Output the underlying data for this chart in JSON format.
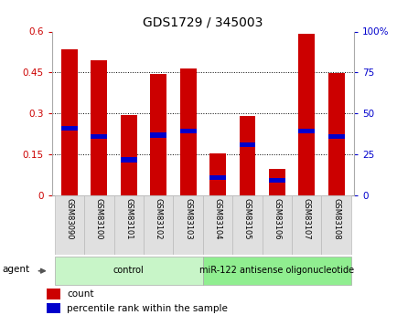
{
  "title": "GDS1729 / 345003",
  "samples": [
    "GSM83090",
    "GSM83100",
    "GSM83101",
    "GSM83102",
    "GSM83103",
    "GSM83104",
    "GSM83105",
    "GSM83106",
    "GSM83107",
    "GSM83108"
  ],
  "count_values": [
    0.535,
    0.495,
    0.295,
    0.445,
    0.465,
    0.152,
    0.29,
    0.095,
    0.59,
    0.448
  ],
  "percentile_values": [
    0.245,
    0.215,
    0.13,
    0.22,
    0.235,
    0.065,
    0.185,
    0.055,
    0.235,
    0.215
  ],
  "groups": [
    {
      "label": "control",
      "start": 0,
      "end": 5,
      "color": "#c8f5c8"
    },
    {
      "label": "miR-122 antisense oligonucleotide",
      "start": 5,
      "end": 10,
      "color": "#90ee90"
    }
  ],
  "ylim_left": [
    0,
    0.6
  ],
  "ylim_right": [
    0,
    100
  ],
  "yticks_left": [
    0,
    0.15,
    0.3,
    0.45,
    0.6
  ],
  "yticks_right": [
    0,
    25,
    50,
    75,
    100
  ],
  "ytick_labels_left": [
    "0",
    "0.15",
    "0.3",
    "0.45",
    "0.6"
  ],
  "ytick_labels_right": [
    "0",
    "25",
    "50",
    "75",
    "100%"
  ],
  "bar_color_red": "#cc0000",
  "bar_color_blue": "#0000cc",
  "bar_width": 0.55,
  "background_color": "#ffffff",
  "left_tick_color": "#cc0000",
  "right_tick_color": "#0000cc",
  "agent_label": "agent",
  "legend_count": "count",
  "legend_percentile": "percentile rank within the sample",
  "blue_bar_height": 0.018,
  "grid_yticks": [
    0.15,
    0.3,
    0.45
  ]
}
